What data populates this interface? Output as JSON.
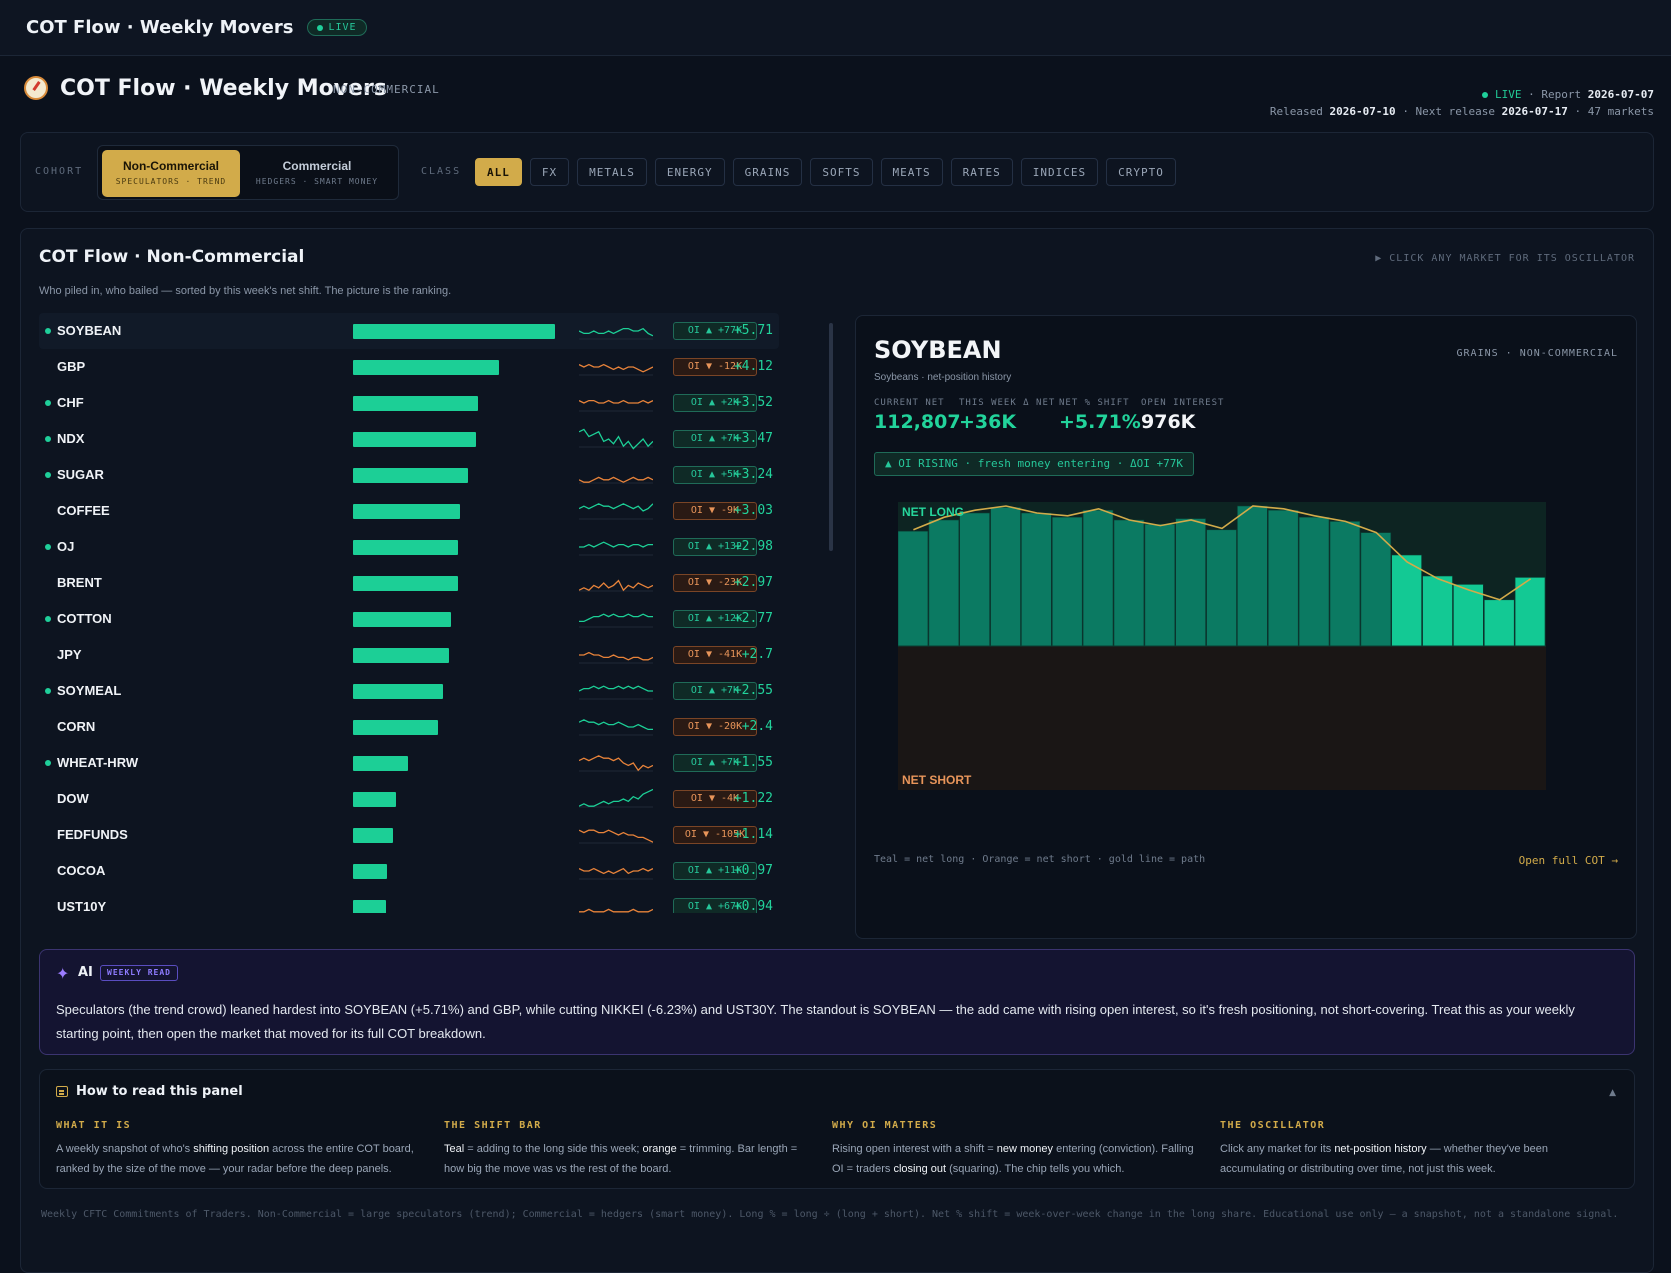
{
  "topbar": {
    "title": "COT Flow · Weekly Movers",
    "live": "LIVE"
  },
  "header": {
    "title": "COT Flow · Weekly Movers",
    "cohort_tag": "NON-COMMERCIAL",
    "live": "LIVE",
    "report_label": "· Report",
    "report_date": "2026-07-07",
    "released_label": "Released",
    "released_date": "2026-07-10",
    "next_label": "· Next release",
    "next_date": "2026-07-17",
    "markets": "· 47 markets"
  },
  "filters": {
    "cohort_label": "COHORT",
    "cohorts": [
      {
        "name": "Non-Commercial",
        "sub": "SPECULATORS · TREND"
      },
      {
        "name": "Commercial",
        "sub": "HEDGERS · SMART MONEY"
      }
    ],
    "class_label": "CLASS",
    "classes": [
      "ALL",
      "FX",
      "METALS",
      "ENERGY",
      "GRAINS",
      "SOFTS",
      "MEATS",
      "RATES",
      "INDICES",
      "CRYPTO"
    ]
  },
  "panel": {
    "title": "COT Flow · Non-Commercial",
    "hint": "▶ CLICK ANY MARKET FOR ITS OSCILLATOR",
    "desc": "Who piled in, who bailed — sorted by this week's net shift. The picture is the ranking."
  },
  "colors": {
    "teal": "#1ccf96",
    "orange": "#e8833a",
    "gold": "#d2ab4a",
    "dark_teal": "#0b7a62"
  },
  "movers": [
    {
      "name": "SOYBEAN",
      "dot": true,
      "shift": 5.71,
      "value": "+5.71",
      "oi": "OI ▲ +77K",
      "oi_dir": "up",
      "spark": "teal",
      "spark_pts": [
        5,
        6,
        6,
        5,
        6,
        6,
        5,
        6,
        5,
        4,
        4,
        5,
        5,
        4,
        6,
        7
      ]
    },
    {
      "name": "GBP",
      "dot": false,
      "shift": 4.12,
      "value": "+4.12",
      "oi": "OI ▼ -12K",
      "oi_dir": "dn",
      "spark": "orange",
      "spark_pts": [
        4,
        5,
        4,
        5,
        5,
        4,
        5,
        6,
        5,
        6,
        5,
        5,
        6,
        7,
        6,
        5
      ]
    },
    {
      "name": "CHF",
      "dot": true,
      "shift": 3.52,
      "value": "+3.52",
      "oi": "OI ▲ +2K",
      "oi_dir": "up",
      "spark": "orange",
      "spark_pts": [
        4,
        5,
        4,
        4,
        5,
        5,
        4,
        5,
        5,
        4,
        5,
        5,
        5,
        4,
        5,
        4
      ]
    },
    {
      "name": "NDX",
      "dot": true,
      "shift": 3.47,
      "value": "+3.47",
      "oi": "OI ▲ +7K",
      "oi_dir": "up",
      "spark": "teal",
      "spark_pts": [
        2,
        1,
        4,
        3,
        2,
        6,
        5,
        7,
        4,
        8,
        6,
        9,
        7,
        5,
        8,
        6
      ]
    },
    {
      "name": "SUGAR",
      "dot": true,
      "shift": 3.24,
      "value": "+3.24",
      "oi": "OI ▲ +5K",
      "oi_dir": "up",
      "spark": "orange",
      "spark_pts": [
        7,
        8,
        8,
        7,
        6,
        7,
        7,
        6,
        7,
        8,
        7,
        6,
        7,
        7,
        6,
        7
      ]
    },
    {
      "name": "COFFEE",
      "dot": false,
      "shift": 3.03,
      "value": "+3.03",
      "oi": "OI ▼ -9K",
      "oi_dir": "dn",
      "spark": "teal",
      "spark_pts": [
        4,
        3,
        4,
        3,
        2,
        3,
        3,
        4,
        3,
        2,
        3,
        4,
        3,
        5,
        4,
        2
      ]
    },
    {
      "name": "OJ",
      "dot": true,
      "shift": 2.98,
      "value": "+2.98",
      "oi": "OI ▲ +132",
      "oi_dir": "up",
      "spark": "teal",
      "spark_pts": [
        5,
        5,
        4,
        5,
        4,
        3,
        4,
        5,
        4,
        4,
        5,
        4,
        4,
        5,
        4,
        4
      ]
    },
    {
      "name": "BRENT",
      "dot": false,
      "shift": 2.97,
      "value": "+2.97",
      "oi": "OI ▼ -23K",
      "oi_dir": "dn",
      "spark": "orange",
      "spark_pts": [
        8,
        7,
        8,
        6,
        7,
        5,
        7,
        6,
        4,
        8,
        6,
        7,
        5,
        6,
        7,
        6
      ]
    },
    {
      "name": "COTTON",
      "dot": true,
      "shift": 2.77,
      "value": "+2.77",
      "oi": "OI ▲ +12K",
      "oi_dir": "up",
      "spark": "teal",
      "spark_pts": [
        6,
        6,
        5,
        4,
        4,
        3,
        4,
        3,
        4,
        4,
        3,
        4,
        4,
        3,
        4,
        4
      ]
    },
    {
      "name": "JPY",
      "dot": false,
      "shift": 2.7,
      "value": "+2.7",
      "oi": "OI ▼ -41K",
      "oi_dir": "dn",
      "spark": "orange",
      "spark_pts": [
        5,
        5,
        4,
        5,
        5,
        6,
        6,
        5,
        6,
        6,
        7,
        6,
        6,
        7,
        7,
        6
      ]
    },
    {
      "name": "SOYMEAL",
      "dot": true,
      "shift": 2.55,
      "value": "+2.55",
      "oi": "OI ▲ +7K",
      "oi_dir": "up",
      "spark": "teal",
      "spark_pts": [
        5,
        4,
        4,
        3,
        4,
        3,
        4,
        4,
        3,
        4,
        3,
        4,
        3,
        4,
        5,
        5
      ]
    },
    {
      "name": "CORN",
      "dot": false,
      "shift": 2.4,
      "value": "+2.4",
      "oi": "OI ▼ -20K",
      "oi_dir": "dn",
      "spark": "teal",
      "spark_pts": [
        3,
        2,
        3,
        3,
        4,
        3,
        4,
        4,
        3,
        4,
        5,
        5,
        4,
        5,
        6,
        6
      ]
    },
    {
      "name": "WHEAT-HRW",
      "dot": true,
      "shift": 1.55,
      "value": "+1.55",
      "oi": "OI ▲ +7K",
      "oi_dir": "up",
      "spark": "orange",
      "spark_pts": [
        4,
        3,
        4,
        3,
        2,
        3,
        3,
        4,
        3,
        5,
        6,
        5,
        8,
        6,
        7,
        6
      ]
    },
    {
      "name": "DOW",
      "dot": false,
      "shift": 1.22,
      "value": "+1.22",
      "oi": "OI ▼ -4K",
      "oi_dir": "dn",
      "spark": "teal",
      "spark_pts": [
        8,
        7,
        8,
        8,
        7,
        6,
        7,
        6,
        6,
        5,
        6,
        4,
        5,
        3,
        2,
        1
      ]
    },
    {
      "name": "FEDFUNDS",
      "dot": false,
      "shift": 1.14,
      "value": "+1.14",
      "oi": "OI ▼ -105K",
      "oi_dir": "dn",
      "spark": "orange",
      "spark_pts": [
        3,
        4,
        3,
        3,
        4,
        4,
        3,
        4,
        5,
        4,
        5,
        5,
        6,
        6,
        7,
        8
      ]
    },
    {
      "name": "COCOA",
      "dot": false,
      "shift": 0.97,
      "value": "+0.97",
      "oi": "OI ▲ +11K",
      "oi_dir": "up",
      "spark": "orange",
      "spark_pts": [
        4,
        5,
        5,
        4,
        5,
        6,
        5,
        6,
        5,
        4,
        6,
        5,
        5,
        4,
        5,
        4
      ]
    },
    {
      "name": "UST10Y",
      "dot": false,
      "shift": 0.94,
      "value": "+0.94",
      "oi": "OI ▲ +67K",
      "oi_dir": "up",
      "spark": "orange",
      "spark_pts": [
        7,
        7,
        6,
        7,
        7,
        7,
        6,
        7,
        7,
        7,
        7,
        6,
        7,
        7,
        7,
        6
      ]
    }
  ],
  "detail": {
    "symbol": "SOYBEAN",
    "class": "GRAINS · NON-COMMERCIAL",
    "name": "Soybeans · net-position history",
    "stats": [
      {
        "label": "CURRENT NET",
        "value": "112,807",
        "color": "#22d39b"
      },
      {
        "label": "THIS WEEK Δ NET",
        "value": "+36K",
        "color": "#22d39b"
      },
      {
        "label": "NET % SHIFT",
        "value": "+5.71%",
        "color": "#22d39b"
      },
      {
        "label": "OPEN INTEREST",
        "value": "976K",
        "color": "#f3f5f8"
      }
    ],
    "oi_flag": "▲ OI RISING · fresh money entering · ΔOI +77K",
    "net_long_label": "NET LONG",
    "net_short_label": "NET SHORT",
    "legend": "Teal = net long · Orange = net short · gold line = path",
    "open_link": "Open full COT →"
  },
  "ai": {
    "label": "AI",
    "tag": "WEEKLY READ",
    "text": "Speculators (the trend crowd) leaned hardest into SOYBEAN (+5.71%) and GBP, while cutting NIKKEI (-6.23%) and UST30Y. The standout is SOYBEAN — the add came with rising open interest, so it's fresh positioning, not short-covering. Treat this as your weekly starting point, then open the market that moved for its full COT breakdown."
  },
  "howto": {
    "title": "How to read this panel",
    "caret": "▲",
    "cols": [
      {
        "title": "WHAT IT IS",
        "pre": "A weekly snapshot of who's ",
        "b1": "shifting position",
        "mid": " across the entire COT board, ranked by the size of the move — your radar before the deep panels.",
        "b2": "",
        "post": ""
      },
      {
        "title": "THE SHIFT BAR",
        "pre": "",
        "b1": "Teal",
        "mid": " = adding to the long side this week; ",
        "b2": "orange",
        "post": " = trimming. Bar length = how big the move was vs the rest of the board."
      },
      {
        "title": "WHY OI MATTERS",
        "pre": "Rising open interest with a shift = ",
        "b1": "new money",
        "mid": " entering (conviction). Falling OI = traders ",
        "b2": "closing out",
        "post": " (squaring). The chip tells you which."
      },
      {
        "title": "THE OSCILLATOR",
        "pre": "Click any market for its ",
        "b1": "net-position history",
        "mid": " — whether they've been accumulating or distributing over time, not just this week.",
        "b2": "",
        "post": ""
      }
    ]
  },
  "footer": "Weekly CFTC Commitments of Traders. Non-Commercial = large speculators (trend); Commercial = hedgers (smart money). Long % = long ÷ (long + short). Net % shift = week-over-week change in the long share. Educational use only — a snapshot, not a standalone signal.",
  "chart_data": {
    "type": "bar",
    "title": "SOYBEAN",
    "series": [
      {
        "values": [
          0.82,
          0.9,
          0.95,
          0.99,
          0.95,
          0.92,
          0.97,
          0.9,
          0.87,
          0.91,
          0.83,
          1.0,
          0.97,
          0.92,
          0.89,
          0.81,
          0.65,
          0.5,
          0.44,
          0.33,
          0.49
        ]
      }
    ],
    "path_values": [
      0.83,
      0.92,
      0.97,
      1.0,
      0.95,
      0.93,
      0.98,
      0.9,
      0.86,
      0.9,
      0.84,
      1.0,
      0.98,
      0.93,
      0.89,
      0.81,
      0.6,
      0.48,
      0.4,
      0.33,
      0.48
    ],
    "highlight_from_index": 16,
    "ylim": [
      -1,
      1
    ]
  }
}
